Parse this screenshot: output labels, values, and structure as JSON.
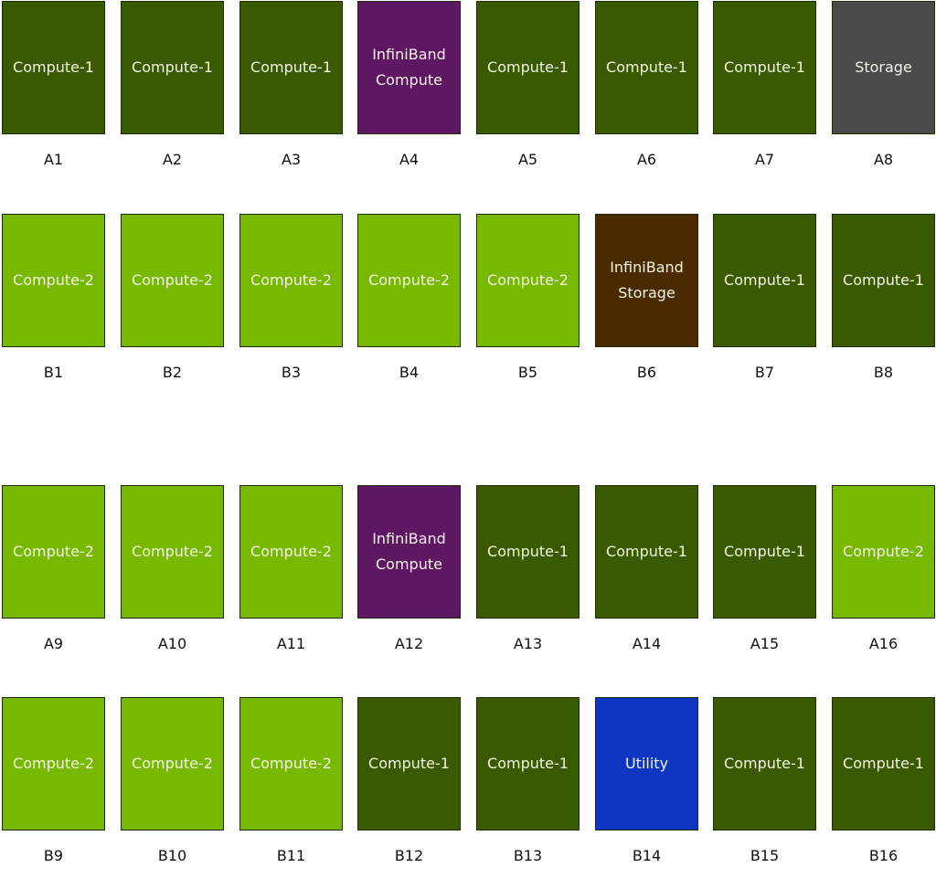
{
  "colors": {
    "Compute-1": "#3a5a00",
    "Compute-2": "#76b900",
    "InfiniBand Compute": "#5e1761",
    "InfiniBand Storage": "#4a2b00",
    "Storage": "#4a4a4a",
    "Utility": "#0e36c0"
  },
  "rows": [
    {
      "slots": [
        {
          "id": "A1",
          "type": "Compute-1",
          "label": "Compute-1"
        },
        {
          "id": "A2",
          "type": "Compute-1",
          "label": "Compute-1"
        },
        {
          "id": "A3",
          "type": "Compute-1",
          "label": "Compute-1"
        },
        {
          "id": "A4",
          "type": "InfiniBand Compute",
          "label": "InfiniBand\nCompute"
        },
        {
          "id": "A5",
          "type": "Compute-1",
          "label": "Compute-1"
        },
        {
          "id": "A6",
          "type": "Compute-1",
          "label": "Compute-1"
        },
        {
          "id": "A7",
          "type": "Compute-1",
          "label": "Compute-1"
        },
        {
          "id": "A8",
          "type": "Storage",
          "label": "Storage"
        }
      ]
    },
    {
      "slots": [
        {
          "id": "B1",
          "type": "Compute-2",
          "label": "Compute-2"
        },
        {
          "id": "B2",
          "type": "Compute-2",
          "label": "Compute-2"
        },
        {
          "id": "B3",
          "type": "Compute-2",
          "label": "Compute-2"
        },
        {
          "id": "B4",
          "type": "Compute-2",
          "label": "Compute-2"
        },
        {
          "id": "B5",
          "type": "Compute-2",
          "label": "Compute-2"
        },
        {
          "id": "B6",
          "type": "InfiniBand Storage",
          "label": "InfiniBand\nStorage"
        },
        {
          "id": "B7",
          "type": "Compute-1",
          "label": "Compute-1"
        },
        {
          "id": "B8",
          "type": "Compute-1",
          "label": "Compute-1"
        }
      ]
    },
    {
      "slots": [
        {
          "id": "A9",
          "type": "Compute-2",
          "label": "Compute-2"
        },
        {
          "id": "A10",
          "type": "Compute-2",
          "label": "Compute-2"
        },
        {
          "id": "A11",
          "type": "Compute-2",
          "label": "Compute-2"
        },
        {
          "id": "A12",
          "type": "InfiniBand Compute",
          "label": "InfiniBand\nCompute"
        },
        {
          "id": "A13",
          "type": "Compute-1",
          "label": "Compute-1"
        },
        {
          "id": "A14",
          "type": "Compute-1",
          "label": "Compute-1"
        },
        {
          "id": "A15",
          "type": "Compute-1",
          "label": "Compute-1"
        },
        {
          "id": "A16",
          "type": "Compute-2",
          "label": "Compute-2"
        }
      ]
    },
    {
      "slots": [
        {
          "id": "B9",
          "type": "Compute-2",
          "label": "Compute-2"
        },
        {
          "id": "B10",
          "type": "Compute-2",
          "label": "Compute-2"
        },
        {
          "id": "B11",
          "type": "Compute-2",
          "label": "Compute-2"
        },
        {
          "id": "B12",
          "type": "Compute-1",
          "label": "Compute-1"
        },
        {
          "id": "B13",
          "type": "Compute-1",
          "label": "Compute-1"
        },
        {
          "id": "B14",
          "type": "Utility",
          "label": "Utility"
        },
        {
          "id": "B15",
          "type": "Compute-1",
          "label": "Compute-1"
        },
        {
          "id": "B16",
          "type": "Compute-1",
          "label": "Compute-1"
        }
      ]
    }
  ]
}
